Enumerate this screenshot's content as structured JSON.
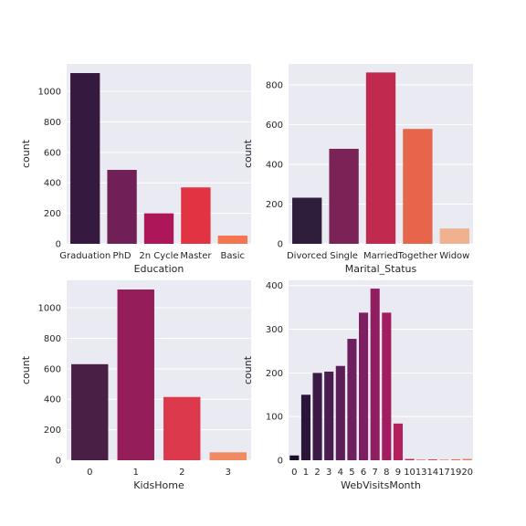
{
  "chart_data": [
    {
      "type": "bar",
      "title": "",
      "xlabel": "Education",
      "ylabel": "count",
      "categories": [
        "Graduation",
        "PhD",
        "2n Cycle",
        "Master",
        "Basic"
      ],
      "values": [
        1120,
        485,
        200,
        370,
        54
      ],
      "ylim": [
        0,
        1180
      ],
      "yticks": [
        "0",
        "200",
        "400",
        "600",
        "800",
        "1000"
      ],
      "colors": [
        "#35193e",
        "#701f57",
        "#ad1759",
        "#e13342",
        "#f37651"
      ],
      "grid": true
    },
    {
      "type": "bar",
      "title": "",
      "xlabel": "Marital_Status",
      "ylabel": "count",
      "categories": [
        "Divorced",
        "Single",
        "Married",
        "Together",
        "Widow"
      ],
      "values": [
        232,
        478,
        862,
        578,
        77
      ],
      "ylim": [
        0,
        905
      ],
      "yticks": [
        "0",
        "200",
        "400",
        "600",
        "800"
      ],
      "colors": [
        "#2e1e3c",
        "#7b2357",
        "#c2294e",
        "#e7654a",
        "#f0b18f"
      ],
      "grid": true
    },
    {
      "type": "bar",
      "title": "",
      "xlabel": "KidsHome",
      "ylabel": "count",
      "categories": [
        "0",
        "1",
        "2",
        "3"
      ],
      "values": [
        630,
        1120,
        415,
        52
      ],
      "ylim": [
        0,
        1180
      ],
      "yticks": [
        "0",
        "200",
        "400",
        "600",
        "800",
        "1000"
      ],
      "colors": [
        "#4a1f45",
        "#951e5a",
        "#dc3a4c",
        "#f08a61"
      ],
      "grid": true
    },
    {
      "type": "bar",
      "title": "",
      "xlabel": "WebVisitsMonth",
      "ylabel": "count",
      "categories": [
        "0",
        "1",
        "2",
        "3",
        "4",
        "5",
        "6",
        "7",
        "8",
        "9",
        "10",
        "13",
        "14",
        "17",
        "19",
        "20"
      ],
      "values": [
        11,
        150,
        200,
        203,
        216,
        278,
        338,
        393,
        338,
        84,
        3,
        1,
        2,
        1,
        2,
        3
      ],
      "ylim": [
        0,
        412
      ],
      "yticks": [
        "0",
        "100",
        "200",
        "300",
        "400"
      ],
      "colors": [
        "#1d0f2a",
        "#2b1538",
        "#3b1a45",
        "#4b1c4f",
        "#5c1e57",
        "#6d1f5e",
        "#7e1f61",
        "#901f62",
        "#a21d60",
        "#b3205b",
        "#c22853",
        "#cf344c",
        "#dc4346",
        "#e65444",
        "#ed6747",
        "#f27b50"
      ],
      "grid": true
    }
  ]
}
